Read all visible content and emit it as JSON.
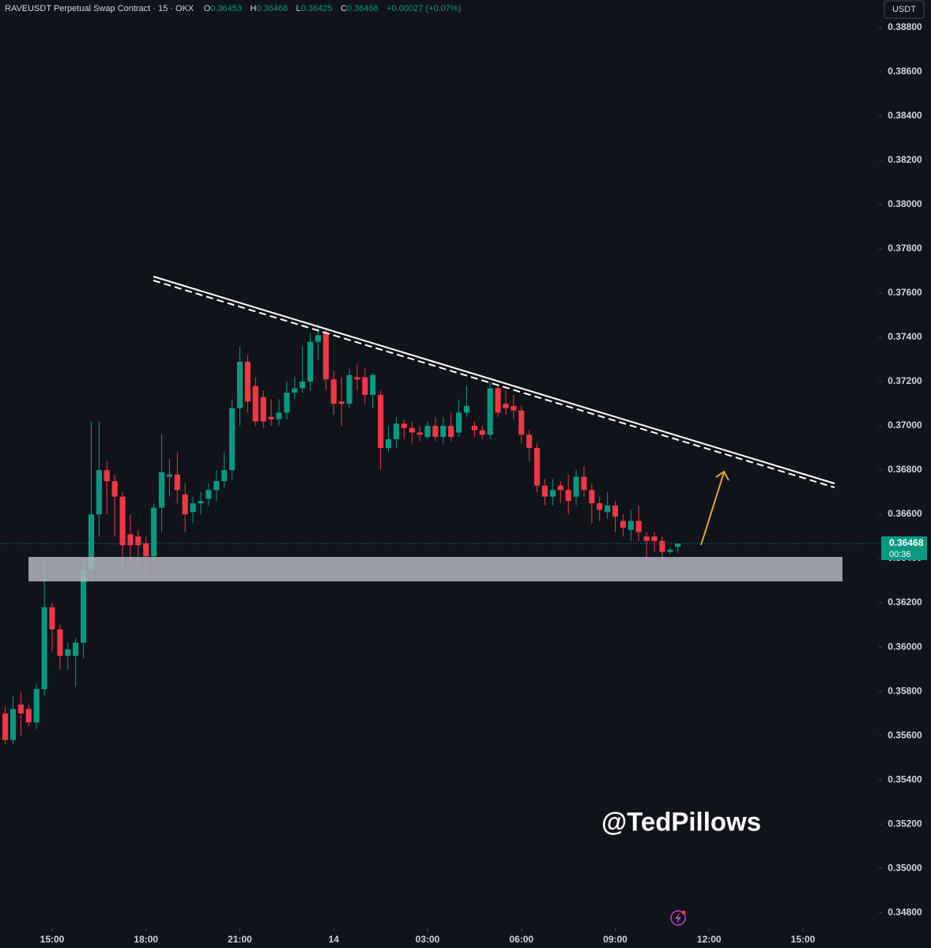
{
  "chart_data": {
    "type": "candlestick",
    "header": {
      "symbol": "RAVEUSDT Perpetual Swap Contract · 15 · OKX",
      "o_label": "O",
      "o": "0.36453",
      "h_label": "H",
      "h": "0.36468",
      "l_label": "L",
      "l": "0.36425",
      "c_label": "C",
      "c": "0.36468",
      "change": "+0.00027 (+0.07%)"
    },
    "currency": "USDT",
    "watermark": "@TedPillows",
    "up_color": "#089981",
    "down_color": "#f23645",
    "open": [
      0.357,
      0.3558,
      0.3574,
      0.3572,
      0.3566,
      0.3581,
      0.3618,
      0.3608,
      0.3596,
      0.3596,
      0.3602,
      0.3635,
      0.366,
      0.368,
      0.3675,
      0.3668,
      0.3651,
      0.365,
      0.3647,
      0.3641,
      0.3663,
      0.3677,
      0.3678,
      0.3669,
      0.3661,
      0.3665,
      0.3667,
      0.3671,
      0.3675,
      0.368,
      0.3708,
      0.3729,
      0.3718,
      0.3713,
      0.3704,
      0.3703,
      0.3706,
      0.3715,
      0.3717,
      0.372,
      0.3738,
      0.3742,
      0.3721,
      0.3711,
      0.371,
      0.3722,
      0.3722,
      0.3714,
      0.3714,
      0.369,
      0.3694,
      0.3701,
      0.3699,
      0.3697,
      0.3695,
      0.37,
      0.3695,
      0.37,
      0.3697,
      0.3706,
      0.37,
      0.3698,
      0.3696,
      0.3717,
      0.371,
      0.3709,
      0.3707,
      0.3696,
      0.369,
      0.3673,
      0.3668,
      0.3673,
      0.3671,
      0.3668,
      0.3677,
      0.3671,
      0.3665,
      0.3661,
      0.3664,
      0.3657,
      0.3653,
      0.3657,
      0.365,
      0.365,
      0.3648,
      0.3643,
      0.36453
    ],
    "high": [
      0.3573,
      0.3578,
      0.358,
      0.3574,
      0.3583,
      0.3638,
      0.362,
      0.361,
      0.3602,
      0.3604,
      0.364,
      0.3702,
      0.3702,
      0.3684,
      0.3678,
      0.367,
      0.366,
      0.3653,
      0.365,
      0.3665,
      0.3696,
      0.3685,
      0.3688,
      0.3674,
      0.3668,
      0.367,
      0.3674,
      0.368,
      0.3688,
      0.3712,
      0.3736,
      0.3732,
      0.3722,
      0.3716,
      0.3712,
      0.3712,
      0.372,
      0.3722,
      0.3736,
      0.3742,
      0.3746,
      0.3744,
      0.3725,
      0.3722,
      0.3726,
      0.3728,
      0.3726,
      0.3724,
      0.3716,
      0.37,
      0.3704,
      0.3703,
      0.3702,
      0.37,
      0.3702,
      0.3704,
      0.3704,
      0.3706,
      0.3712,
      0.3718,
      0.3702,
      0.37,
      0.372,
      0.3719,
      0.3716,
      0.3714,
      0.3709,
      0.3698,
      0.3692,
      0.3676,
      0.3676,
      0.3675,
      0.3678,
      0.368,
      0.3682,
      0.3674,
      0.3668,
      0.367,
      0.3666,
      0.366,
      0.3662,
      0.3664,
      0.3652,
      0.3652,
      0.365,
      0.3645,
      0.36468
    ],
    "low": [
      0.3556,
      0.3556,
      0.356,
      0.3564,
      0.3563,
      0.3578,
      0.3598,
      0.359,
      0.359,
      0.3582,
      0.3595,
      0.363,
      0.365,
      0.366,
      0.365,
      0.3635,
      0.3638,
      0.3637,
      0.3632,
      0.3638,
      0.3652,
      0.3668,
      0.3665,
      0.3652,
      0.3656,
      0.366,
      0.3664,
      0.3666,
      0.3672,
      0.3676,
      0.37,
      0.3706,
      0.37,
      0.3699,
      0.37,
      0.37,
      0.3703,
      0.3712,
      0.3715,
      0.3716,
      0.373,
      0.3716,
      0.3705,
      0.37,
      0.3708,
      0.3716,
      0.371,
      0.3708,
      0.368,
      0.3688,
      0.369,
      0.3694,
      0.3692,
      0.3693,
      0.3694,
      0.3693,
      0.3692,
      0.3693,
      0.3695,
      0.3704,
      0.3695,
      0.3694,
      0.3694,
      0.3704,
      0.3705,
      0.3703,
      0.3692,
      0.3684,
      0.367,
      0.3664,
      0.3664,
      0.3665,
      0.366,
      0.3664,
      0.3668,
      0.3656,
      0.3657,
      0.3658,
      0.3652,
      0.365,
      0.3648,
      0.3648,
      0.3639,
      0.3643,
      0.364,
      0.3642,
      0.36425
    ],
    "close": [
      0.3558,
      0.3572,
      0.357,
      0.3566,
      0.3581,
      0.3618,
      0.3608,
      0.3596,
      0.3599,
      0.3602,
      0.3635,
      0.366,
      0.368,
      0.3675,
      0.3668,
      0.3646,
      0.3646,
      0.3646,
      0.3641,
      0.3663,
      0.3679,
      0.3678,
      0.3671,
      0.366,
      0.3665,
      0.3666,
      0.3671,
      0.3675,
      0.368,
      0.3708,
      0.3729,
      0.3711,
      0.3702,
      0.3702,
      0.3703,
      0.3706,
      0.3715,
      0.3717,
      0.372,
      0.3738,
      0.3741,
      0.3721,
      0.371,
      0.371,
      0.3723,
      0.3721,
      0.3714,
      0.3723,
      0.369,
      0.3694,
      0.3701,
      0.3699,
      0.3697,
      0.3696,
      0.37,
      0.3695,
      0.37,
      0.3695,
      0.3706,
      0.3709,
      0.3698,
      0.3696,
      0.3717,
      0.3706,
      0.3708,
      0.3707,
      0.3696,
      0.369,
      0.3673,
      0.3668,
      0.3671,
      0.3671,
      0.3666,
      0.3677,
      0.3671,
      0.3665,
      0.3662,
      0.3664,
      0.3659,
      0.3654,
      0.3657,
      0.3652,
      0.3648,
      0.3648,
      0.3643,
      0.3644,
      0.36468
    ],
    "last_price": {
      "value": 0.36468,
      "label": "0.36468"
    },
    "countdown": "00:36",
    "xlim": [
      -0.67,
      111.7
    ],
    "xticks": [
      {
        "value": 6,
        "label": "15:00"
      },
      {
        "value": 18,
        "label": "18:00"
      },
      {
        "value": 30,
        "label": "21:00"
      },
      {
        "value": 42,
        "label": "14"
      },
      {
        "value": 54,
        "label": "03:00"
      },
      {
        "value": 66,
        "label": "06:00"
      },
      {
        "value": 78,
        "label": "09:00"
      },
      {
        "value": 90,
        "label": "12:00"
      },
      {
        "value": 102,
        "label": "15:00"
      }
    ],
    "ylim": [
      0.34729,
      0.38925
    ],
    "yticks": [
      {
        "value": 0.388,
        "label": "0.38800"
      },
      {
        "value": 0.386,
        "label": "0.38600"
      },
      {
        "value": 0.384,
        "label": "0.38400"
      },
      {
        "value": 0.382,
        "label": "0.38200"
      },
      {
        "value": 0.38,
        "label": "0.38000"
      },
      {
        "value": 0.378,
        "label": "0.37800"
      },
      {
        "value": 0.376,
        "label": "0.37600"
      },
      {
        "value": 0.374,
        "label": "0.37400"
      },
      {
        "value": 0.372,
        "label": "0.37200"
      },
      {
        "value": 0.37,
        "label": "0.37000"
      },
      {
        "value": 0.368,
        "label": "0.36800"
      },
      {
        "value": 0.366,
        "label": "0.36600"
      },
      {
        "value": 0.364,
        "label": "0.36400"
      },
      {
        "value": 0.362,
        "label": "0.36200"
      },
      {
        "value": 0.36,
        "label": "0.36000"
      },
      {
        "value": 0.358,
        "label": "0.35800"
      },
      {
        "value": 0.356,
        "label": "0.35600"
      },
      {
        "value": 0.354,
        "label": "0.35400"
      },
      {
        "value": 0.352,
        "label": "0.35200"
      },
      {
        "value": 0.35,
        "label": "0.35000"
      },
      {
        "value": 0.348,
        "label": "0.34800"
      }
    ]
  }
}
